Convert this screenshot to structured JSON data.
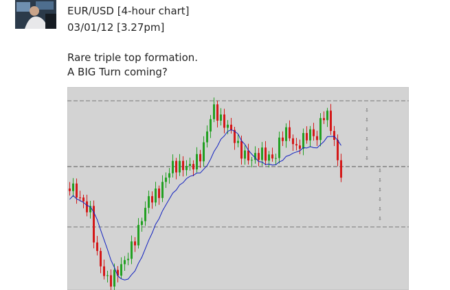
{
  "post": {
    "header": {
      "title": "EUR/USD [4-hour chart]",
      "date": "03/01/12 [3.27pm]"
    },
    "body": {
      "lines": [
        "Rare triple top formation.",
        "A BIG Turn coming?"
      ]
    }
  }
}
